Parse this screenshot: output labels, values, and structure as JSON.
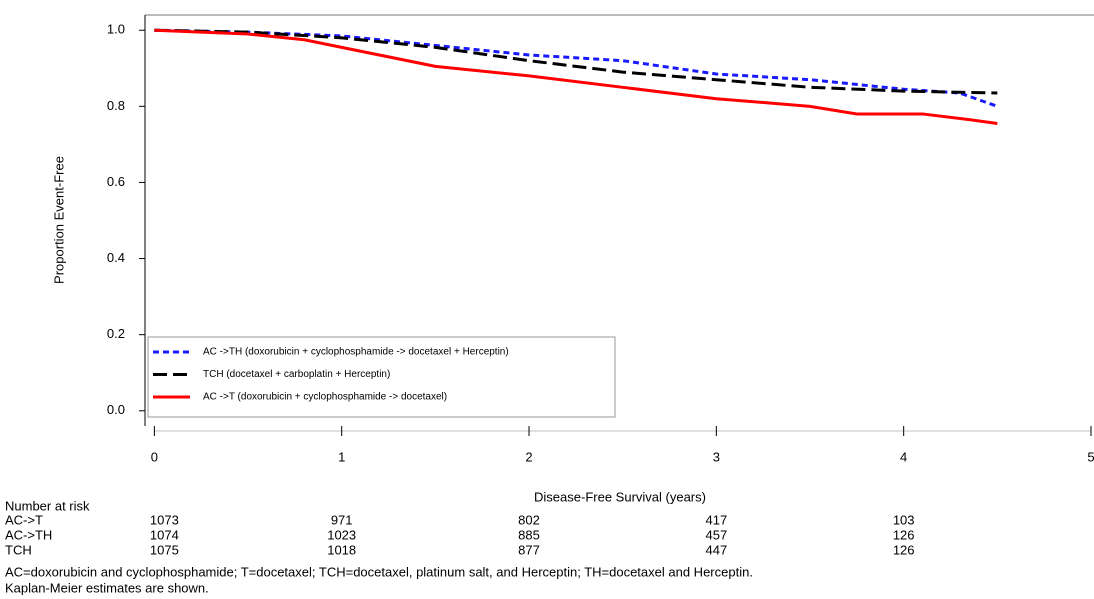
{
  "chart_data": {
    "type": "line",
    "xlabel": "Disease-Free Survival (years)",
    "ylabel": "Proportion Event-Free",
    "xlim": [
      -0.05,
      5.0
    ],
    "ylim": [
      -0.04,
      1.04
    ],
    "xticks": [
      0,
      1,
      2,
      3,
      4,
      5
    ],
    "yticks": [
      {
        "value": 0,
        "label": "0.0"
      },
      0.2,
      0.4,
      0.6,
      0.8,
      {
        "value": 1,
        "label": "1.0"
      }
    ],
    "legend": "lower-left",
    "series": [
      {
        "name": "AC ->TH (doxorubicin + cyclophosphamide -> docetaxel + Herceptin)",
        "color": "#1a1aff",
        "line_style": "dashed",
        "x": [
          0,
          0.5,
          1,
          1.5,
          2,
          2.5,
          3,
          3.5,
          4,
          4.3,
          4.5
        ],
        "values": [
          1.0,
          0.995,
          0.985,
          0.96,
          0.935,
          0.92,
          0.885,
          0.87,
          0.845,
          0.835,
          0.8
        ]
      },
      {
        "name": "TCH (docetaxel + carboplatin + Herceptin)",
        "color": "#000000",
        "line_style": "long-dashed",
        "x": [
          0,
          0.5,
          1,
          1.5,
          2,
          2.5,
          3,
          3.5,
          4,
          4.5
        ],
        "values": [
          1.0,
          0.995,
          0.98,
          0.955,
          0.92,
          0.89,
          0.87,
          0.85,
          0.84,
          0.835
        ]
      },
      {
        "name": "AC ->T (doxorubicin + cyclophosphamide -> docetaxel)",
        "color": "#ff0000",
        "line_style": "solid",
        "x": [
          0,
          0.5,
          0.8,
          1,
          1.5,
          2,
          2.5,
          3,
          3.5,
          3.75,
          4.1,
          4.35,
          4.5
        ],
        "values": [
          1.0,
          0.99,
          0.975,
          0.955,
          0.905,
          0.88,
          0.85,
          0.82,
          0.8,
          0.78,
          0.78,
          0.765,
          0.755
        ]
      }
    ],
    "risk_table": {
      "title": "Number at risk",
      "rows": [
        {
          "name": "AC->T",
          "values": [
            1073,
            971,
            802,
            417,
            103
          ]
        },
        {
          "name": "AC->TH",
          "values": [
            1074,
            1023,
            885,
            457,
            126
          ]
        },
        {
          "name": "TCH",
          "values": [
            1075,
            1018,
            877,
            447,
            126
          ]
        }
      ]
    },
    "notes": [
      "AC=doxorubicin and cyclophosphamide; T=docetaxel; TCH=docetaxel, platinum salt, and Herceptin; TH=docetaxel and Herceptin.",
      "Kaplan-Meier estimates are shown."
    ]
  }
}
